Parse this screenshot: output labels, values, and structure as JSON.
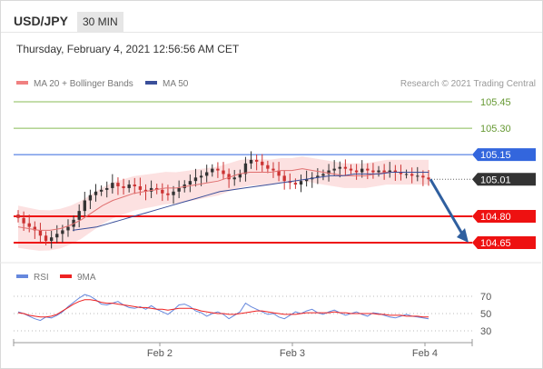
{
  "header": {
    "symbol": "USD/JPY",
    "timeframe": "30 MIN"
  },
  "datetime": "Thursday, February 4, 2021 12:56:56 AM CET",
  "legend": {
    "ma20_label": "MA 20 + Bollinger Bands",
    "ma50_label": "MA 50",
    "credit": "Research © 2021 Trading Central"
  },
  "colors": {
    "up_candle": "#333333",
    "down_candle": "#cc3333",
    "bollinger_fill": "#fbdcdc",
    "ma20": "#e07070",
    "ma50": "#3a4f9a",
    "target_line": "#88bb55",
    "resistance": "#3366dd",
    "support": "#ee1111",
    "arrow": "#2f5f9f",
    "rsi": "#6688dd",
    "rsi_ma": "#ee2222"
  },
  "chart_data": [
    {
      "type": "line",
      "subtype": "candlestick",
      "title": "USD/JPY 30 MIN",
      "x_ticks": [
        "Feb 2",
        "Feb 3",
        "Feb 4"
      ],
      "y_ticks": [
        105.45,
        105.3,
        105.15,
        105.01,
        104.8,
        104.65
      ],
      "levels": [
        {
          "name": "target-2",
          "value": 105.45,
          "label": "105.45",
          "color": "#88bb55"
        },
        {
          "name": "target-1",
          "value": 105.3,
          "label": "105.30",
          "color": "#88bb55"
        },
        {
          "name": "resistance",
          "value": 105.15,
          "label": "105.15",
          "color": "#3366dd"
        },
        {
          "name": "last-price",
          "value": 105.01,
          "label": "105.01",
          "color": "#333333"
        },
        {
          "name": "support-1",
          "value": 104.8,
          "label": "104.80",
          "color": "#ee1111"
        },
        {
          "name": "support-2",
          "value": 104.65,
          "label": "104.65",
          "color": "#ee1111"
        }
      ],
      "closes": [
        104.79,
        104.76,
        104.74,
        104.72,
        104.69,
        104.66,
        104.68,
        104.7,
        104.72,
        104.74,
        104.78,
        104.83,
        104.89,
        104.92,
        104.94,
        104.95,
        104.96,
        104.99,
        104.97,
        104.96,
        104.98,
        104.97,
        104.95,
        104.94,
        104.96,
        104.95,
        104.93,
        104.92,
        104.94,
        104.96,
        104.98,
        105.0,
        105.02,
        105.03,
        105.05,
        105.07,
        105.06,
        105.04,
        105.01,
        105.02,
        105.04,
        105.1,
        105.12,
        105.11,
        105.09,
        105.07,
        105.06,
        105.03,
        105.0,
        104.99,
        104.98,
        105.0,
        105.01,
        105.02,
        105.03,
        105.04,
        105.06,
        105.07,
        105.08,
        105.07,
        105.06,
        105.05,
        105.07,
        105.06,
        105.05,
        105.06,
        105.05,
        105.06,
        105.05,
        105.04,
        105.04,
        105.03,
        105.03,
        105.02,
        105.01
      ],
      "ma20": [
        104.74,
        104.73,
        104.72,
        104.72,
        104.73,
        104.75,
        104.78,
        104.82,
        104.86,
        104.89,
        104.91,
        104.93,
        104.94,
        104.95,
        104.96,
        104.96,
        104.97,
        104.98,
        104.99,
        105.0,
        105.02,
        105.04,
        105.05,
        105.05,
        105.05,
        105.06,
        105.06,
        105.07,
        105.06,
        105.05,
        105.04,
        105.03,
        105.03,
        105.03,
        105.04,
        105.05,
        105.05,
        105.05,
        105.05,
        105.05
      ],
      "ma50": [
        104.72,
        104.73,
        104.74,
        104.76,
        104.78,
        104.8,
        104.82,
        104.84,
        104.86,
        104.88,
        104.9,
        104.92,
        104.94,
        104.95,
        104.96,
        104.97,
        104.98,
        104.99,
        105.0,
        105.01,
        105.02,
        105.03,
        105.03,
        105.04,
        105.04,
        105.04,
        105.05,
        105.05,
        105.05,
        105.05
      ],
      "forecast_arrow": {
        "from": 105.01,
        "to": 104.65
      }
    },
    {
      "type": "line",
      "title": "RSI",
      "y_ticks": [
        70,
        50,
        30
      ],
      "series": [
        {
          "name": "RSI",
          "values": [
            52,
            50,
            47,
            44,
            42,
            46,
            45,
            48,
            52,
            58,
            63,
            68,
            72,
            70,
            66,
            61,
            60,
            62,
            64,
            60,
            57,
            56,
            58,
            55,
            59,
            55,
            52,
            49,
            54,
            60,
            61,
            58,
            53,
            51,
            47,
            50,
            52,
            49,
            44,
            48,
            52,
            62,
            58,
            55,
            52,
            49,
            50,
            46,
            44,
            48,
            52,
            50,
            53,
            55,
            51,
            49,
            52,
            54,
            51,
            48,
            50,
            52,
            49,
            47,
            51,
            50,
            48,
            46,
            45,
            47,
            49,
            47,
            46,
            45,
            44
          ]
        },
        {
          "name": "9MA",
          "values": [
            51,
            50,
            48,
            47,
            46,
            46,
            47,
            49,
            53,
            57,
            61,
            64,
            66,
            66,
            65,
            63,
            62,
            62,
            61,
            60,
            59,
            58,
            57,
            57,
            56,
            55,
            55,
            54,
            55,
            56,
            56,
            56,
            55,
            53,
            52,
            51,
            50,
            50,
            49,
            49,
            50,
            51,
            52,
            53,
            53,
            52,
            51,
            50,
            49,
            49,
            49,
            50,
            51,
            51,
            51,
            51,
            51,
            52,
            51,
            51,
            50,
            50,
            50,
            50,
            50,
            49,
            49,
            48,
            48,
            48,
            47,
            47,
            47,
            46,
            46
          ]
        }
      ]
    }
  ]
}
